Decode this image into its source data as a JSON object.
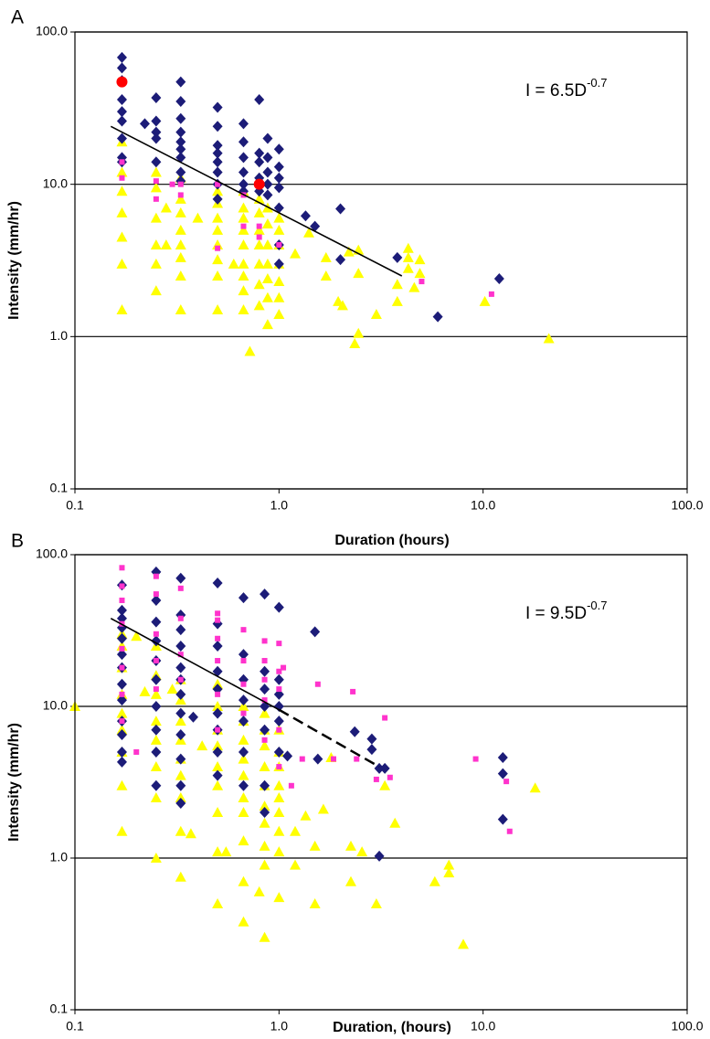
{
  "chart_data": [
    {
      "type": "scatter",
      "panel_label": "A",
      "xlabel": "Duration (hours)",
      "ylabel": "Intensity (mm/hr)",
      "annotation": {
        "text": "I = 6.5D",
        "exponent": "-0.7"
      },
      "log_x": true,
      "log_y": true,
      "grid": true,
      "xlim": [
        0.1,
        100
      ],
      "ylim": [
        0.1,
        100
      ],
      "xticks": [
        0.1,
        {
          "value": 1,
          "label": "1.0"
        },
        {
          "value": 10,
          "label": "10.0"
        },
        {
          "value": 100,
          "label": "100.0"
        }
      ],
      "yticks": [
        0.1,
        {
          "value": 1,
          "label": "1.0"
        },
        {
          "value": 10,
          "label": "10.0"
        },
        {
          "value": 100,
          "label": "100.0"
        }
      ],
      "trend_lines": [
        {
          "x": [
            0.15,
            4
          ],
          "y": [
            24,
            2.5
          ],
          "dashed": false
        }
      ],
      "series": [
        {
          "marker": "triangle",
          "color": "#ffff00",
          "x": [
            0.17,
            0.17,
            0.17,
            0.17,
            0.17,
            0.17,
            0.17,
            0.25,
            0.25,
            0.25,
            0.25,
            0.25,
            0.25,
            0.28,
            0.28,
            0.33,
            0.33,
            0.33,
            0.33,
            0.33,
            0.33,
            0.33,
            0.33,
            0.4,
            0.5,
            0.5,
            0.5,
            0.5,
            0.5,
            0.5,
            0.5,
            0.5,
            0.6,
            0.67,
            0.67,
            0.67,
            0.67,
            0.67,
            0.67,
            0.67,
            0.67,
            0.67,
            0.72,
            0.8,
            0.8,
            0.8,
            0.8,
            0.8,
            0.8,
            0.8,
            0.88,
            0.88,
            0.88,
            0.88,
            0.88,
            0.88,
            0.88,
            1,
            1,
            1,
            1,
            1,
            1,
            1,
            1.2,
            1.4,
            1.7,
            1.7,
            1.95,
            2.05,
            2.2,
            2.35,
            2.45,
            2.45,
            2.45,
            3,
            3.8,
            3.8,
            4.3,
            4.3,
            4.3,
            4.6,
            4.9,
            4.9,
            10.2,
            21
          ],
          "values": [
            19,
            12,
            9,
            6.5,
            4.5,
            3,
            1.5,
            12,
            9.5,
            6,
            4,
            3,
            2,
            7,
            4,
            11,
            8,
            6.5,
            5,
            4,
            3.3,
            2.5,
            1.5,
            6,
            9,
            7.5,
            6,
            5,
            4,
            3.2,
            2.5,
            1.5,
            3,
            9,
            7,
            6,
            5,
            4,
            3,
            2.5,
            2,
            1.5,
            0.8,
            8,
            6.5,
            5,
            4,
            3,
            2.2,
            1.6,
            7,
            5.5,
            4,
            3,
            2.4,
            1.8,
            1.2,
            6,
            5,
            4,
            3,
            2.3,
            1.8,
            1.4,
            3.5,
            4.8,
            3.3,
            2.5,
            1.7,
            1.6,
            3.6,
            0.9,
            1.05,
            3.7,
            2.6,
            1.4,
            2.2,
            1.7,
            3.8,
            3.3,
            2.8,
            2.1,
            3.2,
            2.6,
            1.7,
            0.97
          ]
        },
        {
          "marker": "diamond",
          "color": "#1c1c78",
          "x": [
            0.17,
            0.17,
            0.17,
            0.17,
            0.17,
            0.17,
            0.17,
            0.17,
            0.17,
            0.22,
            0.25,
            0.25,
            0.25,
            0.25,
            0.25,
            0.33,
            0.33,
            0.33,
            0.33,
            0.33,
            0.33,
            0.33,
            0.33,
            0.33,
            0.5,
            0.5,
            0.5,
            0.5,
            0.5,
            0.5,
            0.5,
            0.5,
            0.67,
            0.67,
            0.67,
            0.67,
            0.67,
            0.67,
            0.8,
            0.8,
            0.8,
            0.8,
            0.8,
            0.88,
            0.88,
            0.88,
            0.88,
            0.88,
            1,
            1,
            1,
            1,
            1,
            1,
            1,
            1.35,
            1.5,
            2,
            2,
            3.8,
            6,
            12
          ],
          "values": [
            68,
            58,
            48,
            36,
            30,
            26,
            20,
            15,
            14,
            25,
            37,
            26,
            22,
            20,
            14,
            47,
            35,
            27,
            22,
            19,
            17,
            15,
            12,
            10.5,
            32,
            24,
            18,
            16,
            14,
            12,
            10,
            8,
            25,
            19,
            15,
            12,
            10,
            9,
            36,
            16,
            14,
            11,
            9,
            20,
            15,
            12,
            10,
            8.5,
            17,
            13,
            11,
            9.5,
            7,
            4,
            3,
            6.2,
            5.3,
            6.9,
            3.2,
            3.3,
            1.35,
            2.4
          ]
        },
        {
          "marker": "square",
          "color": "#ff33cc",
          "x": [
            0.17,
            0.17,
            0.25,
            0.25,
            0.3,
            0.33,
            0.33,
            0.5,
            0.5,
            0.67,
            0.67,
            0.8,
            0.8,
            1,
            5,
            11
          ],
          "values": [
            14,
            11,
            10.5,
            8,
            10,
            10,
            8.5,
            10,
            3.8,
            8.5,
            5.3,
            5.3,
            4.5,
            4,
            2.3,
            1.9
          ]
        },
        {
          "marker": "circle",
          "color": "#ff0000",
          "x": [
            0.17,
            0.8
          ],
          "values": [
            47,
            10
          ]
        }
      ]
    },
    {
      "type": "scatter",
      "panel_label": "B",
      "xlabel": "Duration, (hours)",
      "ylabel": "Intensity (mm/hr)",
      "annotation": {
        "text": "I = 9.5D",
        "exponent": "-0.7"
      },
      "log_x": true,
      "log_y": true,
      "grid": true,
      "xlim": [
        0.1,
        100
      ],
      "ylim": [
        0.1,
        100
      ],
      "xticks": [
        0.1,
        {
          "value": 1,
          "label": "1.0"
        },
        {
          "value": 10,
          "label": "10.0"
        },
        {
          "value": 100,
          "label": "100.0"
        }
      ],
      "yticks": [
        0.1,
        {
          "value": 1,
          "label": "1.0"
        },
        {
          "value": 10,
          "label": "10.0"
        },
        {
          "value": 100,
          "label": "100.0"
        }
      ],
      "trend_lines": [
        {
          "x": [
            0.15,
            1
          ],
          "y": [
            38,
            9.5
          ],
          "dashed": false
        },
        {
          "x": [
            1,
            3.1
          ],
          "y": [
            9.5,
            4
          ],
          "dashed": true
        }
      ],
      "series": [
        {
          "marker": "triangle",
          "color": "#ffff00",
          "x": [
            0.1,
            0.17,
            0.17,
            0.17,
            0.17,
            0.17,
            0.17,
            0.17,
            0.17,
            0.17,
            0.2,
            0.22,
            0.25,
            0.25,
            0.25,
            0.25,
            0.25,
            0.25,
            0.25,
            0.25,
            0.3,
            0.33,
            0.33,
            0.33,
            0.33,
            0.33,
            0.33,
            0.33,
            0.33,
            0.33,
            0.37,
            0.42,
            0.5,
            0.5,
            0.5,
            0.5,
            0.5,
            0.5,
            0.5,
            0.5,
            0.5,
            0.55,
            0.67,
            0.67,
            0.67,
            0.67,
            0.67,
            0.67,
            0.67,
            0.67,
            0.67,
            0.67,
            0.8,
            0.85,
            0.85,
            0.85,
            0.85,
            0.85,
            0.85,
            0.85,
            0.85,
            0.85,
            0.85,
            1,
            1,
            1,
            1,
            1,
            1,
            1,
            1,
            1,
            1.2,
            1.2,
            1.35,
            1.5,
            1.5,
            1.65,
            1.8,
            2.25,
            2.25,
            2.55,
            3,
            3.3,
            3.7,
            5.8,
            6.8,
            6.8,
            8,
            18
          ],
          "values": [
            10,
            30,
            25,
            18,
            12,
            9,
            7,
            5,
            3,
            1.5,
            29,
            12.5,
            25,
            16,
            12,
            8,
            6,
            4,
            2.5,
            1,
            13,
            15,
            11,
            8,
            6,
            4.5,
            3.5,
            2.5,
            1.5,
            0.75,
            1.45,
            5.5,
            14,
            10,
            7,
            5.5,
            4,
            3,
            2,
            1.1,
            0.5,
            1.1,
            10,
            8,
            6,
            4.5,
            3.5,
            2.5,
            2,
            1.3,
            0.7,
            0.38,
            0.6,
            9,
            7,
            5.5,
            4,
            3,
            2.2,
            1.7,
            1.2,
            0.9,
            0.3,
            7,
            5,
            4,
            3,
            2.5,
            2,
            1.5,
            1.1,
            0.55,
            1.5,
            0.9,
            1.9,
            0.5,
            1.2,
            2.1,
            4.6,
            0.7,
            1.2,
            1.1,
            0.5,
            3,
            1.7,
            0.7,
            0.9,
            0.8,
            0.27,
            2.9
          ]
        },
        {
          "marker": "diamond",
          "color": "#1c1c78",
          "x": [
            0.17,
            0.17,
            0.17,
            0.17,
            0.17,
            0.17,
            0.17,
            0.17,
            0.17,
            0.17,
            0.17,
            0.17,
            0.17,
            0.25,
            0.25,
            0.25,
            0.25,
            0.25,
            0.25,
            0.25,
            0.25,
            0.25,
            0.25,
            0.33,
            0.33,
            0.33,
            0.33,
            0.33,
            0.33,
            0.33,
            0.33,
            0.33,
            0.33,
            0.33,
            0.33,
            0.38,
            0.5,
            0.5,
            0.5,
            0.5,
            0.5,
            0.5,
            0.5,
            0.5,
            0.5,
            0.67,
            0.67,
            0.67,
            0.67,
            0.67,
            0.67,
            0.67,
            0.85,
            0.85,
            0.85,
            0.85,
            0.85,
            0.85,
            0.85,
            1,
            1,
            1,
            1,
            1,
            1,
            1.1,
            1.5,
            1.55,
            2.35,
            2.85,
            2.85,
            3.1,
            3.1,
            3.3,
            12.5,
            12.5,
            12.5
          ],
          "values": [
            63,
            43,
            38,
            33,
            28,
            22,
            18,
            14,
            11,
            8,
            6.5,
            5,
            4.3,
            77,
            50,
            36,
            27,
            20,
            15,
            10,
            7,
            5,
            3,
            70,
            40,
            32,
            25,
            18,
            15,
            12,
            9,
            6.5,
            4.5,
            3,
            2.3,
            8.5,
            65,
            35,
            25,
            17,
            13,
            9,
            7,
            5,
            3.5,
            52,
            22,
            15,
            11,
            8,
            5,
            3,
            55,
            17,
            13,
            10,
            7,
            3,
            2,
            45,
            15,
            12,
            10,
            8,
            5,
            4.7,
            31,
            4.5,
            6.8,
            5.2,
            6.1,
            3.9,
            1.03,
            3.9,
            4.6,
            3.6,
            1.8
          ]
        },
        {
          "marker": "square",
          "color": "#ff33cc",
          "x": [
            0.17,
            0.17,
            0.17,
            0.17,
            0.17,
            0.17,
            0.17,
            0.17,
            0.2,
            0.25,
            0.25,
            0.25,
            0.25,
            0.25,
            0.33,
            0.33,
            0.33,
            0.33,
            0.5,
            0.5,
            0.5,
            0.5,
            0.5,
            0.5,
            0.67,
            0.67,
            0.67,
            0.67,
            0.85,
            0.85,
            0.85,
            0.85,
            0.85,
            1,
            1,
            1,
            1,
            1,
            1.05,
            1.15,
            1.3,
            1.55,
            1.85,
            2.3,
            2.4,
            3,
            3.3,
            3.5,
            9.2,
            13,
            13.5
          ],
          "values": [
            82,
            62,
            50,
            35,
            24,
            18,
            12,
            8,
            5,
            72,
            55,
            30,
            20,
            13,
            60,
            38,
            22,
            15,
            41,
            37,
            28,
            20,
            12,
            7,
            32,
            20,
            14,
            9,
            27,
            20,
            15,
            11,
            6,
            26,
            17,
            13,
            7,
            4,
            18,
            3,
            4.5,
            14,
            4.5,
            12.5,
            4.5,
            3.3,
            8.4,
            3.4,
            4.5,
            3.2,
            1.5
          ]
        }
      ]
    }
  ]
}
